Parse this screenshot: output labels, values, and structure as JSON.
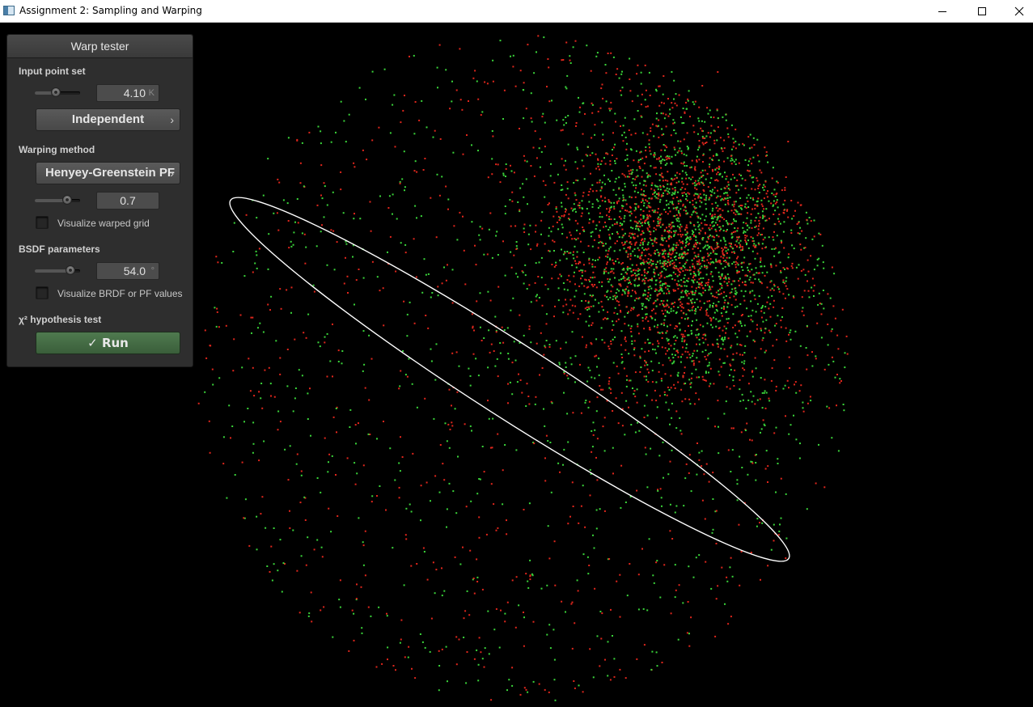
{
  "window": {
    "title": "Assignment 2: Sampling and Warping",
    "controls": [
      "minimize-icon",
      "maximize-icon",
      "close-icon"
    ]
  },
  "panel": {
    "title": "Warp tester",
    "input_point_set": {
      "label": "Input point set",
      "slider_fraction": 0.46,
      "value": "4.10",
      "unit": "K",
      "method_button": "Independent",
      "method_chevron": "›"
    },
    "warping_method": {
      "label": "Warping method",
      "method_button": "Henyey-Greenstein PF",
      "method_chevron": "›",
      "slider_fraction": 0.72,
      "value": "0.7",
      "grid_checkbox_label": "Visualize warped grid",
      "grid_checked": false
    },
    "bsdf": {
      "label": "BSDF parameters",
      "slider_fraction": 0.78,
      "value": "54.0",
      "unit": "°",
      "values_checkbox_label": "Visualize BRDF or PF values",
      "values_checked": false
    },
    "chi2": {
      "label": "χ² hypothesis test",
      "run_button": "Run",
      "run_icon": "✓"
    }
  },
  "colors": {
    "background": "#000000",
    "point_red": "#e0261c",
    "point_green": "#3ad43a",
    "ellipse": "#ffffff",
    "run_button": "#456c45"
  }
}
